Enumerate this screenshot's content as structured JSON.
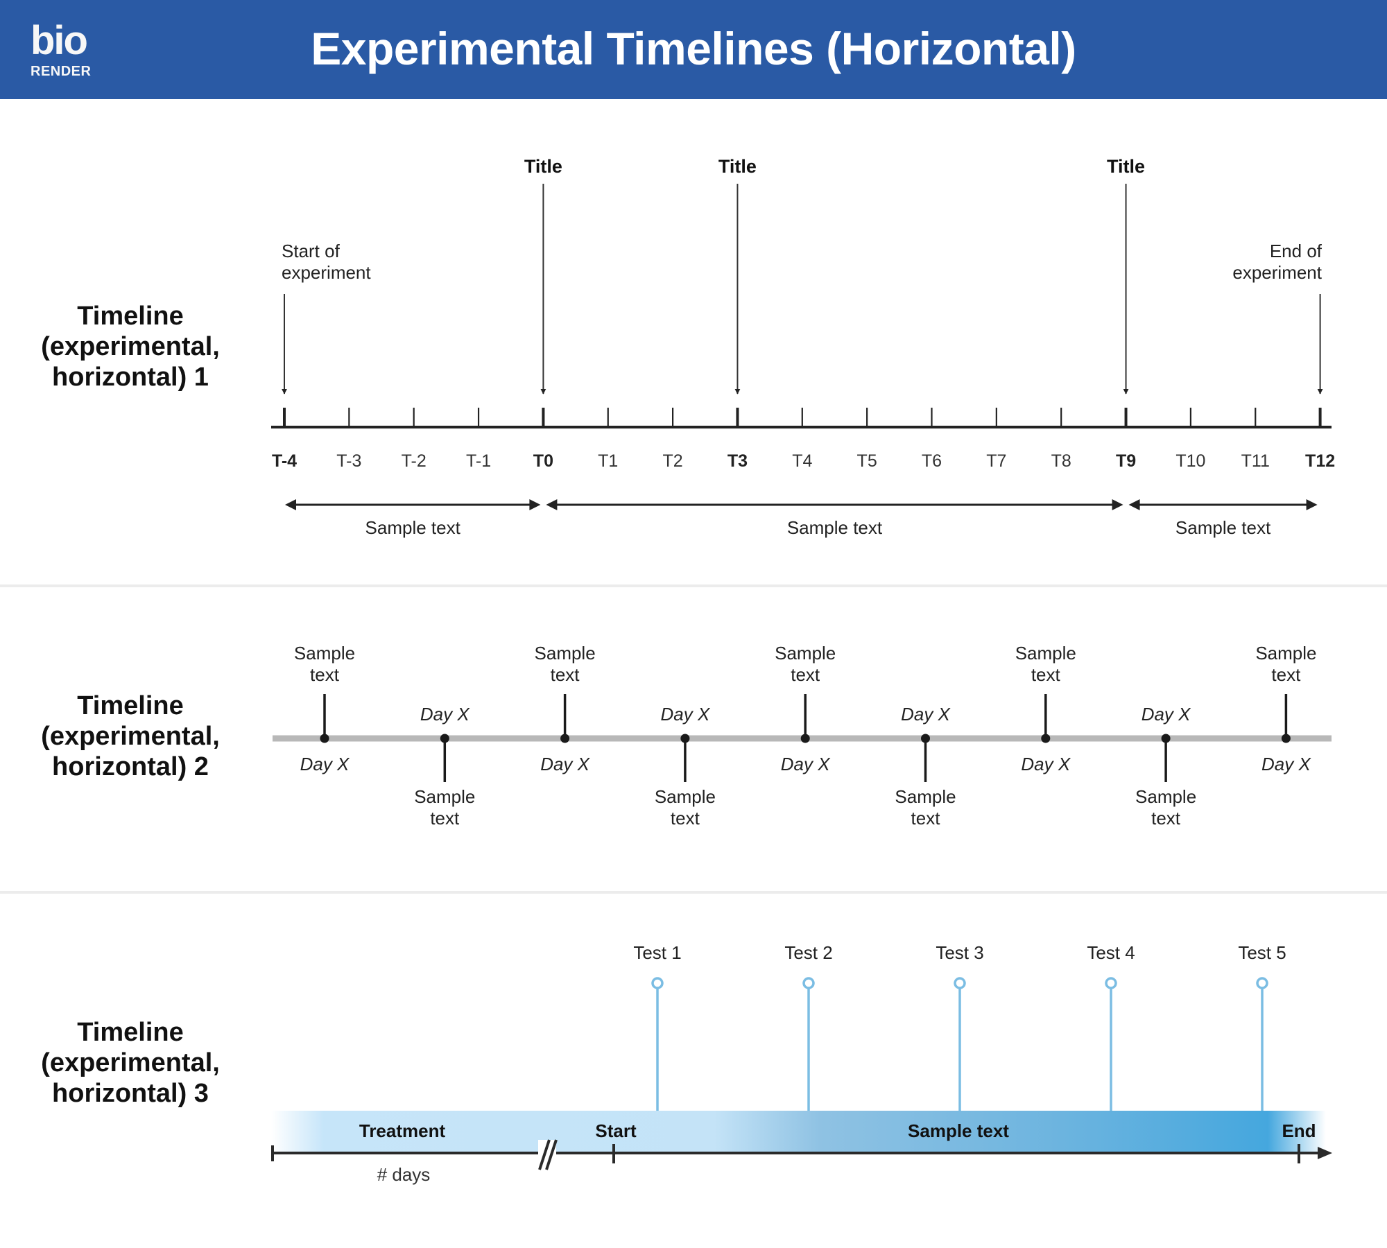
{
  "header": {
    "logo_top": "bio",
    "logo_bottom": "RENDER",
    "title": "Experimental Timelines (Horizontal)",
    "background_color": "#2a5aa5"
  },
  "timeline1": {
    "label": [
      "Timeline",
      "(experimental,",
      "horizontal) 1"
    ],
    "ticks": [
      {
        "label": "T-4",
        "bold": true
      },
      {
        "label": "T-3",
        "bold": false
      },
      {
        "label": "T-2",
        "bold": false
      },
      {
        "label": "T-1",
        "bold": false
      },
      {
        "label": "T0",
        "bold": true
      },
      {
        "label": "T1",
        "bold": false
      },
      {
        "label": "T2",
        "bold": false
      },
      {
        "label": "T3",
        "bold": true
      },
      {
        "label": "T4",
        "bold": false
      },
      {
        "label": "T5",
        "bold": false
      },
      {
        "label": "T6",
        "bold": false
      },
      {
        "label": "T7",
        "bold": false
      },
      {
        "label": "T8",
        "bold": false
      },
      {
        "label": "T9",
        "bold": true
      },
      {
        "label": "T10",
        "bold": false
      },
      {
        "label": "T11",
        "bold": false
      },
      {
        "label": "T12",
        "bold": true
      }
    ],
    "start_note": [
      "Start of",
      "experiment"
    ],
    "end_note": [
      "End of",
      "experiment"
    ],
    "titles": [
      {
        "tick": "T0",
        "text": "Title"
      },
      {
        "tick": "T3",
        "text": "Title"
      },
      {
        "tick": "T9",
        "text": "Title"
      }
    ],
    "ranges": [
      {
        "from": "T-4",
        "to": "T0",
        "text": "Sample text"
      },
      {
        "from": "T0",
        "to": "T9",
        "text": "Sample text"
      },
      {
        "from": "T9",
        "to": "T12",
        "text": "Sample text"
      }
    ]
  },
  "timeline2": {
    "label": [
      "Timeline",
      "(experimental,",
      "horizontal) 2"
    ],
    "line_color": "#b8b8b8",
    "events": [
      {
        "position": "up",
        "text": [
          "Sample",
          "text"
        ],
        "day": "Day X"
      },
      {
        "position": "down",
        "text": [
          "Sample",
          "text"
        ],
        "day": "Day X"
      },
      {
        "position": "up",
        "text": [
          "Sample",
          "text"
        ],
        "day": "Day X"
      },
      {
        "position": "down",
        "text": [
          "Sample",
          "text"
        ],
        "day": "Day X"
      },
      {
        "position": "up",
        "text": [
          "Sample",
          "text"
        ],
        "day": "Day X"
      },
      {
        "position": "down",
        "text": [
          "Sample",
          "text"
        ],
        "day": "Day X"
      },
      {
        "position": "up",
        "text": [
          "Sample",
          "text"
        ],
        "day": "Day X"
      },
      {
        "position": "down",
        "text": [
          "Sample",
          "text"
        ],
        "day": "Day X"
      },
      {
        "position": "up",
        "text": [
          "Sample",
          "text"
        ],
        "day": "Day X"
      }
    ]
  },
  "timeline3": {
    "label": [
      "Timeline",
      "(experimental,",
      "horizontal) 3"
    ],
    "treatment_label": "Treatment",
    "days_label": "# days",
    "start_label": "Start",
    "middle_label": "Sample text",
    "end_label": "End",
    "tests": [
      "Test 1",
      "Test 2",
      "Test 3",
      "Test 4",
      "Test 5"
    ],
    "marker_color": "#7bbde3",
    "band_colors": [
      "#c6e5f9",
      "#85bce0",
      "#45a7de"
    ]
  }
}
